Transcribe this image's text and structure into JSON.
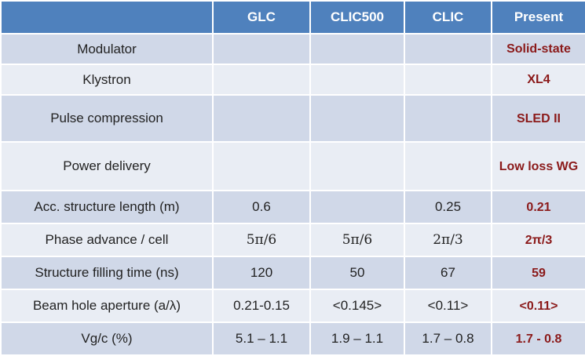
{
  "table": {
    "headers": [
      "",
      "GLC",
      "CLIC500",
      "CLIC",
      "Present"
    ],
    "rows": [
      [
        "Modulator",
        "",
        "",
        "",
        "Solid-state"
      ],
      [
        "Klystron",
        "",
        "",
        "",
        "XL4"
      ],
      [
        "Pulse compression",
        "",
        "",
        "",
        "SLED II"
      ],
      [
        "Power delivery",
        "",
        "",
        "",
        "Low loss WG"
      ],
      [
        "Acc. structure length (m)",
        "0.6",
        "",
        "0.25",
        "0.21"
      ],
      [
        "Phase advance / cell",
        "5π/6",
        "5π/6",
        "2π/3",
        "2π/3"
      ],
      [
        "Structure filling time (ns)",
        "120",
        "50",
        "67",
        "59"
      ],
      [
        "Beam hole aperture  (a/λ)",
        "0.21-0.15",
        "<0.145>",
        "<0.11>",
        "<0.11>"
      ],
      [
        "Vg/c (%)",
        "5.1 – 1.1",
        "1.9 – 1.1",
        "1.7 – 0.8",
        "1.7 - 0.8"
      ]
    ]
  },
  "colors": {
    "header_bg": "#4f81bd",
    "header_text": "#ffffff",
    "row_odd_bg": "#d0d8e8",
    "row_even_bg": "#e9edf4",
    "present_text": "#8b1a1a",
    "body_text": "#222222"
  }
}
